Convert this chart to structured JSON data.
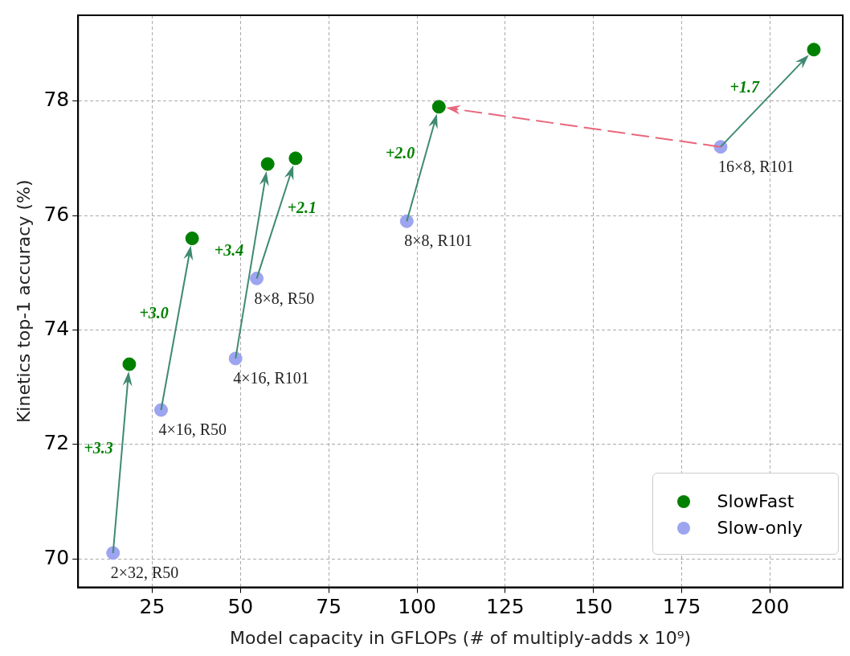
{
  "chart_data": {
    "type": "scatter",
    "xlabel": "Model capacity in GFLOPs (# of multiply-adds x 10⁹)",
    "ylabel": "Kinetics top-1 accuracy (%)",
    "xlim": [
      4,
      220.6
    ],
    "ylim": [
      69.5,
      79.5
    ],
    "xticks": [
      25,
      50,
      75,
      100,
      125,
      150,
      175,
      200
    ],
    "yticks": [
      70,
      72,
      74,
      76,
      78
    ],
    "series": [
      {
        "name": "SlowFast",
        "color": "#008000",
        "x": [
          18.5,
          36.3,
          57.7,
          65.6,
          106.2,
          212.4
        ],
        "values": [
          73.4,
          75.6,
          76.9,
          77.0,
          77.9,
          78.9
        ]
      },
      {
        "name": "Slow-only",
        "color": "#9da4f0",
        "x": [
          13.9,
          27.5,
          48.6,
          54.6,
          97.1,
          186.0
        ],
        "values": [
          70.1,
          72.6,
          73.5,
          74.9,
          75.9,
          77.2
        ]
      }
    ],
    "annotations": [
      "+3.3",
      "+3.0",
      "+3.4",
      "+2.1",
      "+2.0",
      "+1.7",
      {
        "text": "2×32, R50",
        "x": 13.9,
        "y": 70.1
      },
      {
        "text": "4×16, R50",
        "x": 27.5,
        "y": 72.6
      },
      {
        "text": "4×16, R101",
        "x": 48.6,
        "y": 73.5
      },
      {
        "text": "8×8, R50",
        "x": 54.6,
        "y": 74.9
      },
      {
        "text": "8×8, R101",
        "x": 97.1,
        "y": 75.9
      },
      {
        "text": "16×8, R101",
        "x": 186.0,
        "y": 77.2
      }
    ],
    "grid": true,
    "legend": "bottom right",
    "marker": "circle"
  }
}
